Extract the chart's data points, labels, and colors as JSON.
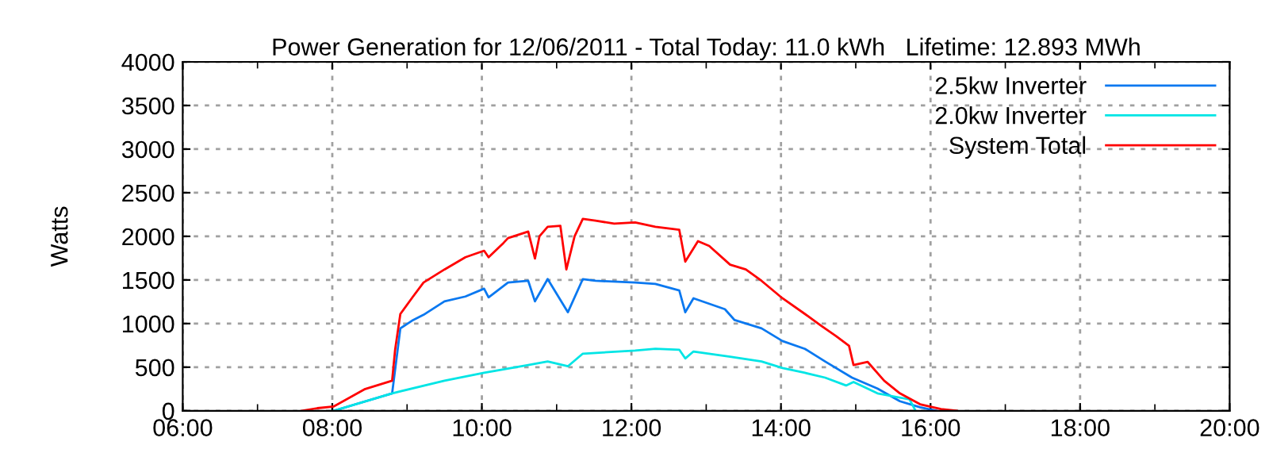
{
  "chart_data": {
    "type": "line",
    "title": "Power Generation for 12/06/2011 - Total Today: 11.0 kWh   Lifetime: 12.893 MWh",
    "ylabel": "Watts",
    "xlim": [
      6,
      20
    ],
    "xticks": [
      {
        "value": 6,
        "label": "06:00"
      },
      {
        "value": 7,
        "label": null
      },
      {
        "value": 8,
        "label": "08:00"
      },
      {
        "value": 9,
        "label": null
      },
      {
        "value": 10,
        "label": "10:00"
      },
      {
        "value": 11,
        "label": null
      },
      {
        "value": 12,
        "label": "12:00"
      },
      {
        "value": 13,
        "label": null
      },
      {
        "value": 14,
        "label": "14:00"
      },
      {
        "value": 15,
        "label": null
      },
      {
        "value": 16,
        "label": "16:00"
      },
      {
        "value": 17,
        "label": null
      },
      {
        "value": 18,
        "label": "18:00"
      },
      {
        "value": 19,
        "label": null
      },
      {
        "value": 20,
        "label": "20:00"
      }
    ],
    "ylim": [
      0,
      4000
    ],
    "yticks": [
      0,
      500,
      1000,
      1500,
      2000,
      2500,
      3000,
      3500,
      4000
    ],
    "grid": true,
    "legend": "top right",
    "line_style": "solid",
    "marker": "none",
    "series": [
      {
        "name": "2.5kw Inverter",
        "color": "#0a78f0",
        "x": [
          8.02,
          8.8,
          8.91,
          9.08,
          9.22,
          9.5,
          9.78,
          10.03,
          10.09,
          10.35,
          10.62,
          10.71,
          10.88,
          11.15,
          11.35,
          11.52,
          12.05,
          12.32,
          12.64,
          12.72,
          12.83,
          13.25,
          13.38,
          13.74,
          14.02,
          14.32,
          14.59,
          14.95,
          15.29,
          15.59,
          15.86,
          16.08
        ],
        "values": [
          0,
          200,
          945,
          1040,
          1100,
          1255,
          1310,
          1400,
          1300,
          1470,
          1490,
          1255,
          1510,
          1130,
          1510,
          1490,
          1470,
          1455,
          1380,
          1130,
          1290,
          1165,
          1040,
          945,
          800,
          710,
          565,
          380,
          255,
          110,
          40,
          0
        ]
      },
      {
        "name": "2.0kw Inverter",
        "color": "#00e5e5",
        "x": [
          8.02,
          8.8,
          9.5,
          10.03,
          10.62,
          10.88,
          11.15,
          11.35,
          12.05,
          12.32,
          12.64,
          12.72,
          12.83,
          13.32,
          13.74,
          14.02,
          14.32,
          14.59,
          14.87,
          14.97,
          15.29,
          15.72,
          15.8
        ],
        "values": [
          0,
          200,
          345,
          435,
          525,
          565,
          510,
          655,
          690,
          710,
          700,
          600,
          680,
          620,
          565,
          490,
          435,
          380,
          290,
          330,
          200,
          130,
          0
        ]
      },
      {
        "name": "System Total",
        "color": "#ff0000",
        "x": [
          7.59,
          7.8,
          8.02,
          8.44,
          8.8,
          8.84,
          8.91,
          9.08,
          9.22,
          9.5,
          9.78,
          10.03,
          10.09,
          10.29,
          10.35,
          10.62,
          10.71,
          10.77,
          10.88,
          11.05,
          11.13,
          11.24,
          11.35,
          11.52,
          11.77,
          12.05,
          12.32,
          12.64,
          12.72,
          12.89,
          13.04,
          13.32,
          13.53,
          13.74,
          14.02,
          14.32,
          14.53,
          14.74,
          14.91,
          14.97,
          15.16,
          15.38,
          15.59,
          15.86,
          16.14,
          16.35
        ],
        "values": [
          0,
          30,
          50,
          250,
          345,
          700,
          1110,
          1310,
          1470,
          1620,
          1760,
          1835,
          1760,
          1925,
          1980,
          2055,
          1745,
          2000,
          2110,
          2120,
          1620,
          2000,
          2200,
          2180,
          2145,
          2160,
          2110,
          2075,
          1710,
          1945,
          1890,
          1675,
          1620,
          1490,
          1290,
          1110,
          980,
          855,
          745,
          525,
          560,
          345,
          200,
          75,
          20,
          0
        ]
      }
    ]
  }
}
